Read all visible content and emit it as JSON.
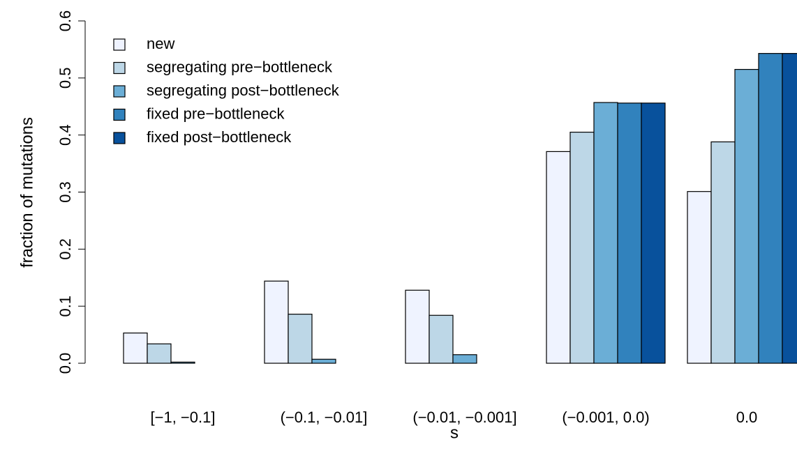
{
  "chart_data": {
    "type": "bar",
    "x_label": "s",
    "y_label": "fraction of mutations",
    "categories": [
      "[−1, −0.1]",
      "(−0.1, −0.01]",
      "(−0.01, −0.001]",
      "(−0.001, 0.0)",
      "0.0"
    ],
    "series": [
      {
        "name": "new",
        "color": "#eff3ff",
        "values": [
          0.053,
          0.144,
          0.128,
          0.371,
          0.301
        ]
      },
      {
        "name": "segregating pre−bottleneck",
        "color": "#bdd7e7",
        "values": [
          0.034,
          0.086,
          0.084,
          0.405,
          0.388
        ]
      },
      {
        "name": "segregating post−bottleneck",
        "color": "#6baed6",
        "values": [
          0.002,
          0.007,
          0.015,
          0.457,
          0.515
        ]
      },
      {
        "name": "fixed pre−bottleneck",
        "color": "#3182bd",
        "values": [
          0,
          0,
          0,
          0.456,
          0.543
        ]
      },
      {
        "name": "fixed post−bottleneck",
        "color": "#08519c",
        "values": [
          0,
          0,
          0,
          0.456,
          0.543
        ]
      }
    ],
    "ylim": [
      0,
      0.6
    ],
    "yticks": [
      {
        "value": 0,
        "label": "0.0"
      },
      0.1,
      0.2,
      0.3,
      0.4,
      0.5,
      0.6
    ],
    "legend": "top-left"
  }
}
